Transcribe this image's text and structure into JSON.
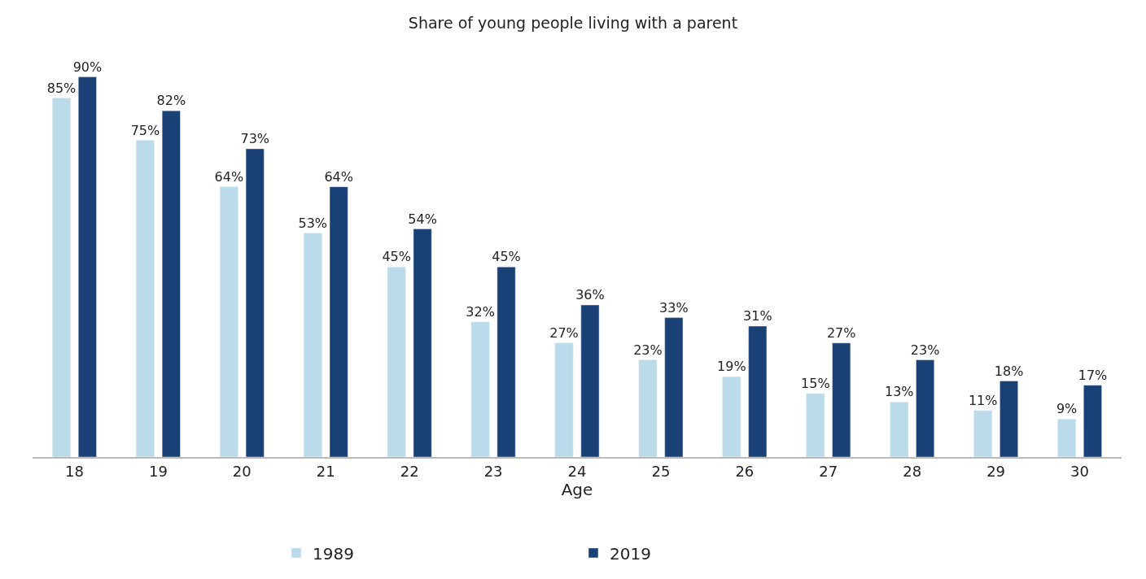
{
  "chart_data": {
    "type": "bar",
    "title": "Share of young people living with a parent",
    "xlabel": "Age",
    "categories": [
      "18",
      "19",
      "20",
      "21",
      "22",
      "23",
      "24",
      "25",
      "26",
      "27",
      "28",
      "29",
      "30"
    ],
    "series": [
      {
        "name": "1989",
        "color": "#bcdbea",
        "values": [
          85,
          75,
          64,
          53,
          45,
          32,
          27,
          23,
          19,
          15,
          13,
          11,
          9
        ],
        "value_labels": [
          "85%",
          "75%",
          "64%",
          "53%",
          "45%",
          "32%",
          "27%",
          "23%",
          "19%",
          "15%",
          "13%",
          "11%",
          "9%"
        ]
      },
      {
        "name": "2019",
        "color": "#1a4175",
        "values": [
          90,
          82,
          73,
          64,
          54,
          45,
          36,
          33,
          31,
          27,
          23,
          18,
          17
        ],
        "value_labels": [
          "90%",
          "82%",
          "73%",
          "64%",
          "54%",
          "45%",
          "36%",
          "33%",
          "31%",
          "27%",
          "23%",
          "18%",
          "17%"
        ]
      }
    ],
    "legend": "bottom"
  }
}
